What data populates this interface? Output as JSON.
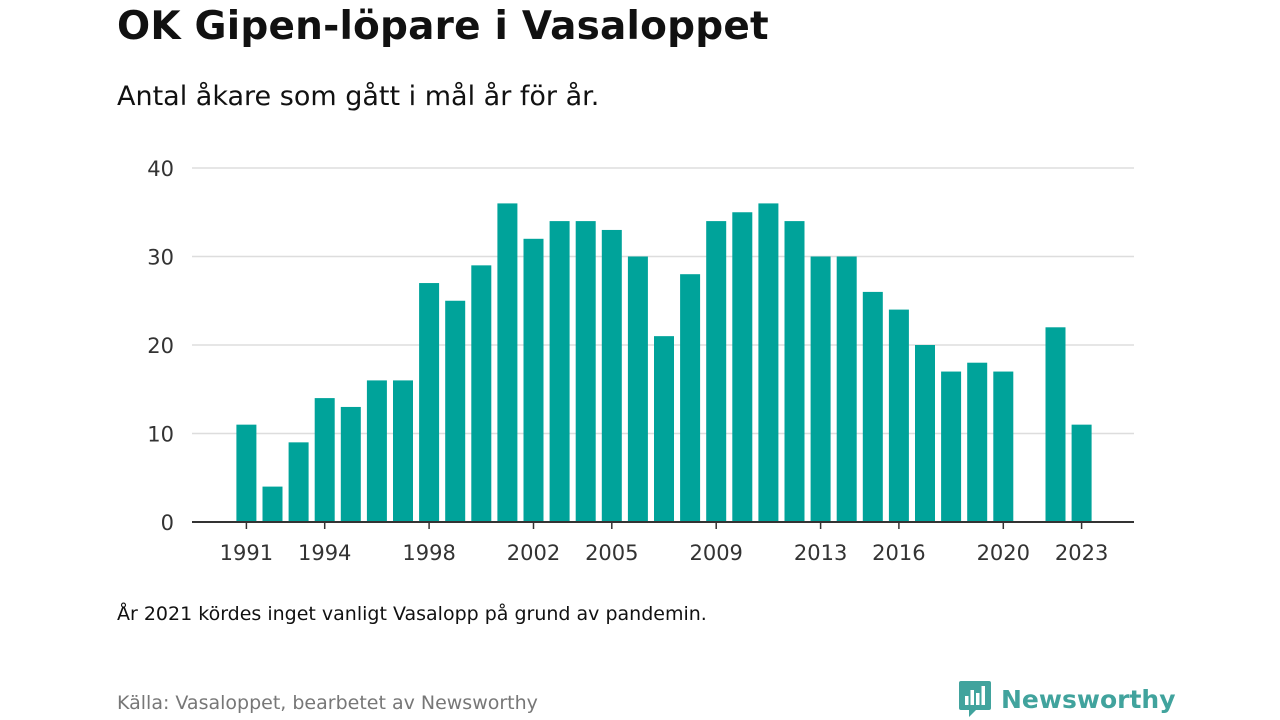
{
  "header": {
    "title": "OK Gipen-löpare i Vasaloppet",
    "subtitle": "Antal åkare som gått i mål år för år."
  },
  "footer": {
    "note": "År 2021 kördes inget vanligt Vasalopp på grund av pandemin.",
    "source": "Källa: Vasaloppet, bearbetet av Newsworthy",
    "brand": "Newsworthy",
    "brand_icon": "newsworthy-logo-icon"
  },
  "colors": {
    "bar": "#00a39a",
    "grid": "#dddddd",
    "axis": "#333333",
    "brand": "#41a39d"
  },
  "chart_data": {
    "type": "bar",
    "title": "OK Gipen-löpare i Vasaloppet",
    "subtitle": "Antal åkare som gått i mål år för år.",
    "xlabel": "",
    "ylabel": "",
    "categories": [
      1991,
      1992,
      1993,
      1994,
      1995,
      1996,
      1997,
      1998,
      1999,
      2000,
      2001,
      2002,
      2003,
      2004,
      2005,
      2006,
      2007,
      2008,
      2009,
      2010,
      2011,
      2012,
      2013,
      2014,
      2015,
      2016,
      2017,
      2018,
      2019,
      2020,
      2021,
      2022,
      2023
    ],
    "values": [
      11,
      4,
      9,
      14,
      13,
      16,
      16,
      27,
      25,
      29,
      36,
      32,
      34,
      34,
      33,
      30,
      21,
      28,
      34,
      35,
      36,
      34,
      30,
      30,
      26,
      24,
      20,
      17,
      18,
      17,
      null,
      22,
      11
    ],
    "x_tick_labels": [
      "1991",
      "1994",
      "1998",
      "2002",
      "2005",
      "2009",
      "2013",
      "2016",
      "2020",
      "2023"
    ],
    "y_ticks": [
      0,
      10,
      20,
      30,
      40
    ],
    "ylim": [
      0,
      40
    ],
    "grid": true,
    "legend": "none"
  }
}
